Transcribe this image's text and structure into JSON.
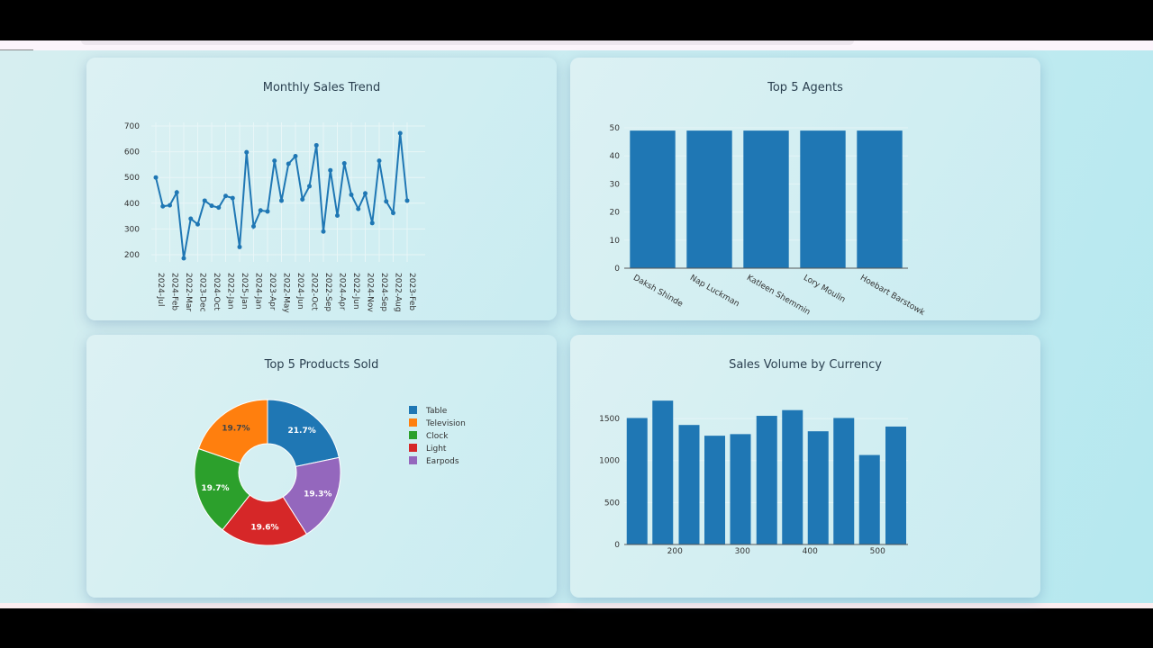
{
  "colors": {
    "bar": "#1f77b4",
    "line": "#1f77b4"
  },
  "chart_data": [
    {
      "type": "line",
      "title": "Monthly Sales Trend",
      "ylim": [
        150,
        720
      ],
      "yticks": [
        200,
        300,
        400,
        500,
        600,
        700
      ],
      "grid": true,
      "x_tick_labels": [
        "2024-Jul",
        "2024-Feb",
        "2022-Mar",
        "2023-Dec",
        "2024-Oct",
        "2022-Jan",
        "2025-Jan",
        "2024-Jan",
        "2023-Apr",
        "2022-May",
        "2024-Jun",
        "2022-Oct",
        "2022-Sep",
        "2024-Apr",
        "2022-Jun",
        "2024-Nov",
        "2024-Sep",
        "2022-Aug",
        "2023-Feb"
      ],
      "values": [
        500,
        388,
        392,
        442,
        186,
        340,
        318,
        410,
        390,
        383,
        428,
        420,
        230,
        598,
        310,
        372,
        368,
        565,
        410,
        553,
        583,
        415,
        466,
        625,
        290,
        528,
        352,
        555,
        433,
        378,
        438,
        323,
        565,
        407,
        362,
        672,
        410
      ]
    },
    {
      "type": "bar",
      "title": "Top 5 Agents",
      "categories": [
        "Daksh Shinde",
        "Nap Luckman",
        "Katleen Shemmin",
        "Lory Moulin",
        "Hoebart Barstowk"
      ],
      "values": [
        49,
        49,
        49,
        49,
        49
      ],
      "ylim": [
        0,
        50
      ],
      "yticks": [
        0,
        10,
        20,
        30,
        40,
        50
      ],
      "grid": true
    },
    {
      "type": "pie",
      "title": "Top 5 Products Sold",
      "hole": true,
      "legend": "right",
      "slices": [
        {
          "label": "Table",
          "value": 21.7,
          "text": "21.7%",
          "color": "#1f77b4"
        },
        {
          "label": "Earpods",
          "value": 19.3,
          "text": "19.3%",
          "color": "#9467bd"
        },
        {
          "label": "Light",
          "value": 19.6,
          "text": "19.6%",
          "color": "#d62728"
        },
        {
          "label": "Clock",
          "value": 19.7,
          "text": "19.7%",
          "color": "#2ca02c"
        },
        {
          "label": "Television",
          "value": 19.7,
          "text": "19.7%",
          "color": "#ff7f0e"
        }
      ],
      "legend_order": [
        "Table",
        "Television",
        "Clock",
        "Light",
        "Earpods"
      ]
    },
    {
      "type": "bar",
      "title": "Sales Volume by Currency",
      "x": [
        144,
        182,
        221,
        259,
        297,
        336,
        374,
        412,
        450,
        488,
        527
      ],
      "values": [
        1507,
        1714,
        1424,
        1296,
        1315,
        1533,
        1601,
        1349,
        1507,
        1066,
        1405
      ],
      "xlim": [
        125,
        545
      ],
      "xticks": [
        200,
        300,
        400,
        500
      ],
      "ylim": [
        0,
        1780
      ],
      "yticks": [
        0,
        500,
        1000,
        1500
      ],
      "grid": true
    }
  ]
}
